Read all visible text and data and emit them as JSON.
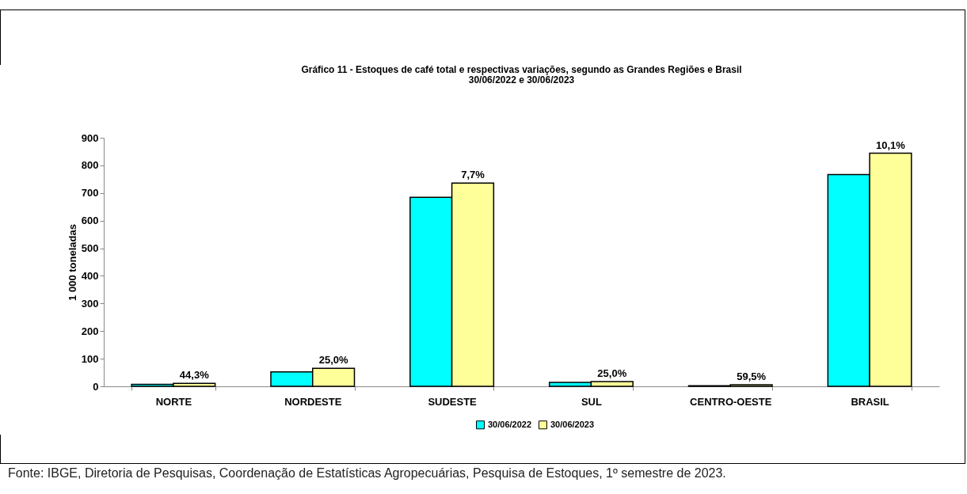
{
  "chart_data": {
    "type": "bar",
    "title": "Gráfico 11 - Estoques de café total e respectivas variações, segundo as Grandes Regiões e Brasil",
    "subtitle": "30/06/2022 e 30/06/2023",
    "ylabel": "1 000 toneladas",
    "categories": [
      "NORTE",
      "NORDESTE",
      "SUDESTE",
      "SUL",
      "CENTRO-OESTE",
      "BRASIL"
    ],
    "series": [
      {
        "name": "30/06/2022",
        "color": "#00ffff",
        "values": [
          7,
          52,
          684,
          14,
          2,
          767
        ]
      },
      {
        "name": "30/06/2023",
        "color": "#ffff99",
        "values": [
          11,
          65,
          736,
          17,
          6,
          844
        ]
      }
    ],
    "ylim": [
      0,
      900
    ],
    "yticks": [
      0,
      100,
      200,
      300,
      400,
      500,
      600,
      700,
      800,
      900
    ],
    "grid": false,
    "legend": "bottom",
    "annotations": [
      {
        "text": "44,3%",
        "x": "NORTE",
        "y": 11
      },
      {
        "text": "25,0%",
        "x": "NORDESTE",
        "y": 65
      },
      {
        "text": "7,7%",
        "x": "SUDESTE",
        "y": 736
      },
      {
        "text": "25,0%",
        "x": "SUL",
        "y": 17
      },
      {
        "text": "59,5%",
        "x": "CENTRO-OESTE",
        "y": 6
      },
      {
        "text": "10,1%",
        "x": "BRASIL",
        "y": 844
      },
      "Fonte: IBGE, Diretoria de Pesquisas, Coordenação de Estatísticas Agropecuárias, Pesquisa de Estoques, 1º semestre de 2023."
    ]
  }
}
